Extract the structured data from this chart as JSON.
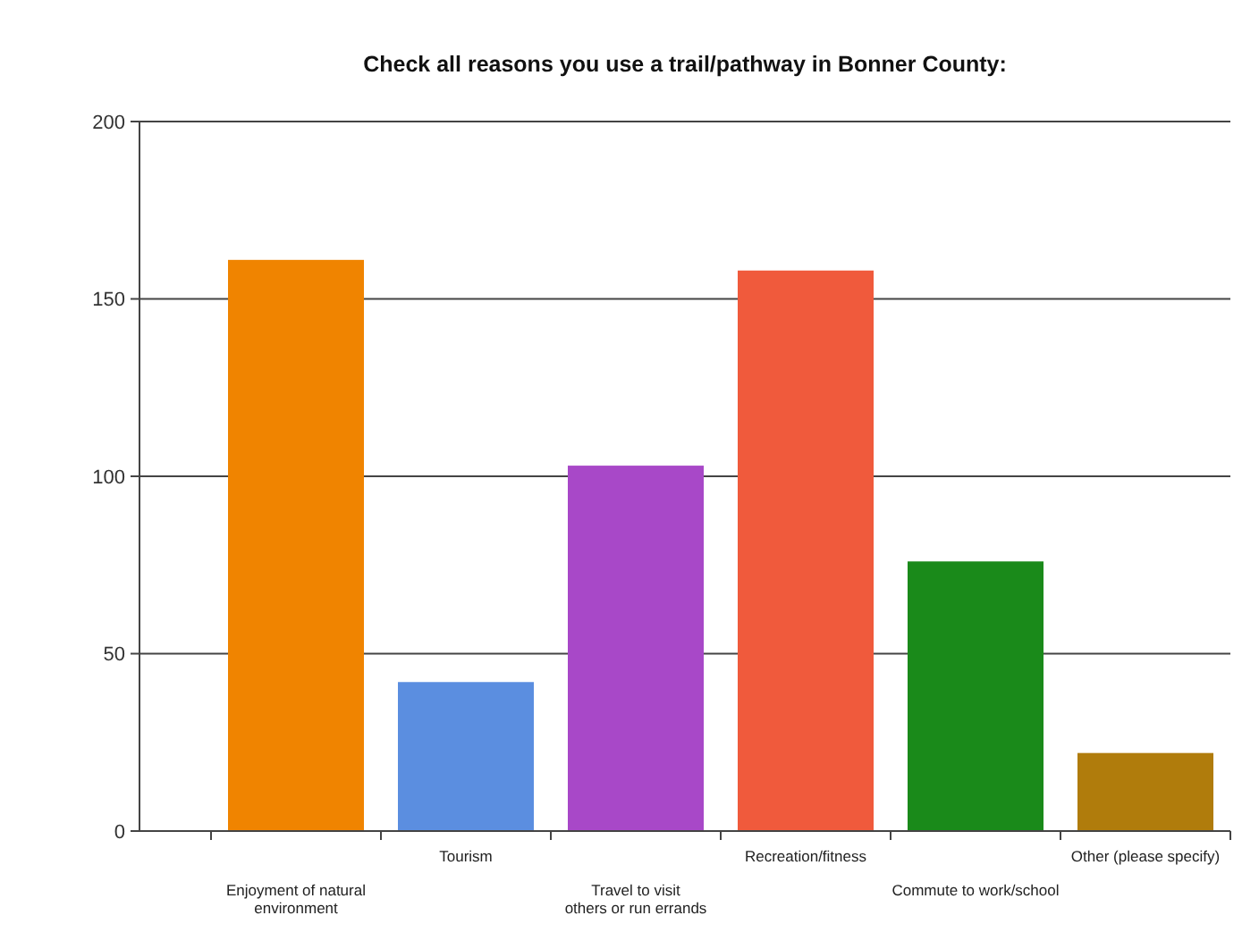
{
  "chart_data": {
    "type": "bar",
    "title": "Check all reasons you use a trail/pathway in Bonner County:",
    "categories": [
      "Enjoyment of natural\nenvironment",
      "Tourism",
      "Travel to visit\nothers or run errands",
      "Recreation/fitness",
      "Commute to work/school",
      "Other (please specify)"
    ],
    "values": [
      161,
      42,
      103,
      158,
      76,
      22
    ],
    "colors": [
      "#f08400",
      "#5b8ee0",
      "#a848c8",
      "#f05a3c",
      "#1a8a1a",
      "#b07c0c"
    ],
    "ylim": [
      0,
      200
    ],
    "yticks": [
      0,
      50,
      100,
      150,
      200
    ],
    "grid": "y"
  }
}
